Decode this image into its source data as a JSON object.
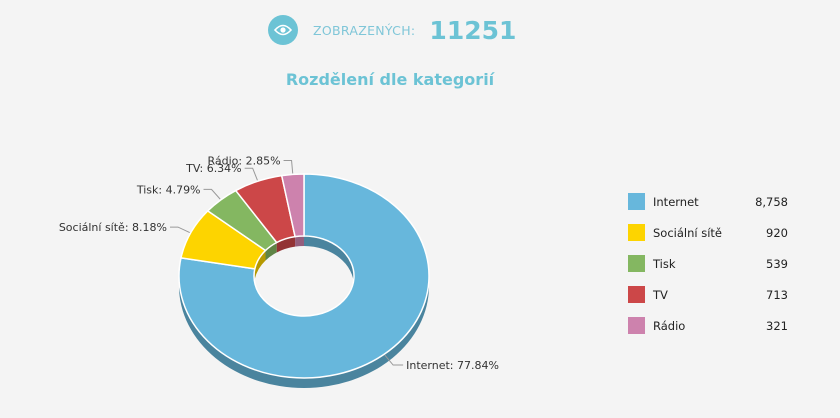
{
  "views": {
    "label": "ZOBRAZENÝCH:",
    "count": "11251",
    "icon": "eye-icon"
  },
  "title": "Rozdělení dle kategorií",
  "chart_data": {
    "type": "pie",
    "title": "Rozdělení dle kategorií",
    "donut": true,
    "legend_position": "right",
    "slices": [
      {
        "name": "Internet",
        "value": 8758,
        "display_value": "8,758",
        "percent_label": "77.84%",
        "color": "#67b7dc"
      },
      {
        "name": "Sociální sítě",
        "value": 920,
        "display_value": "920",
        "percent_label": "8.18%",
        "color": "#fdd400"
      },
      {
        "name": "Tisk",
        "value": 539,
        "display_value": "539",
        "percent_label": "4.79%",
        "color": "#84b761"
      },
      {
        "name": "TV",
        "value": 713,
        "display_value": "713",
        "percent_label": "6.34%",
        "color": "#cc4748"
      },
      {
        "name": "Rádio",
        "value": 321,
        "display_value": "321",
        "percent_label": "2.85%",
        "color": "#cd82ad"
      }
    ]
  }
}
